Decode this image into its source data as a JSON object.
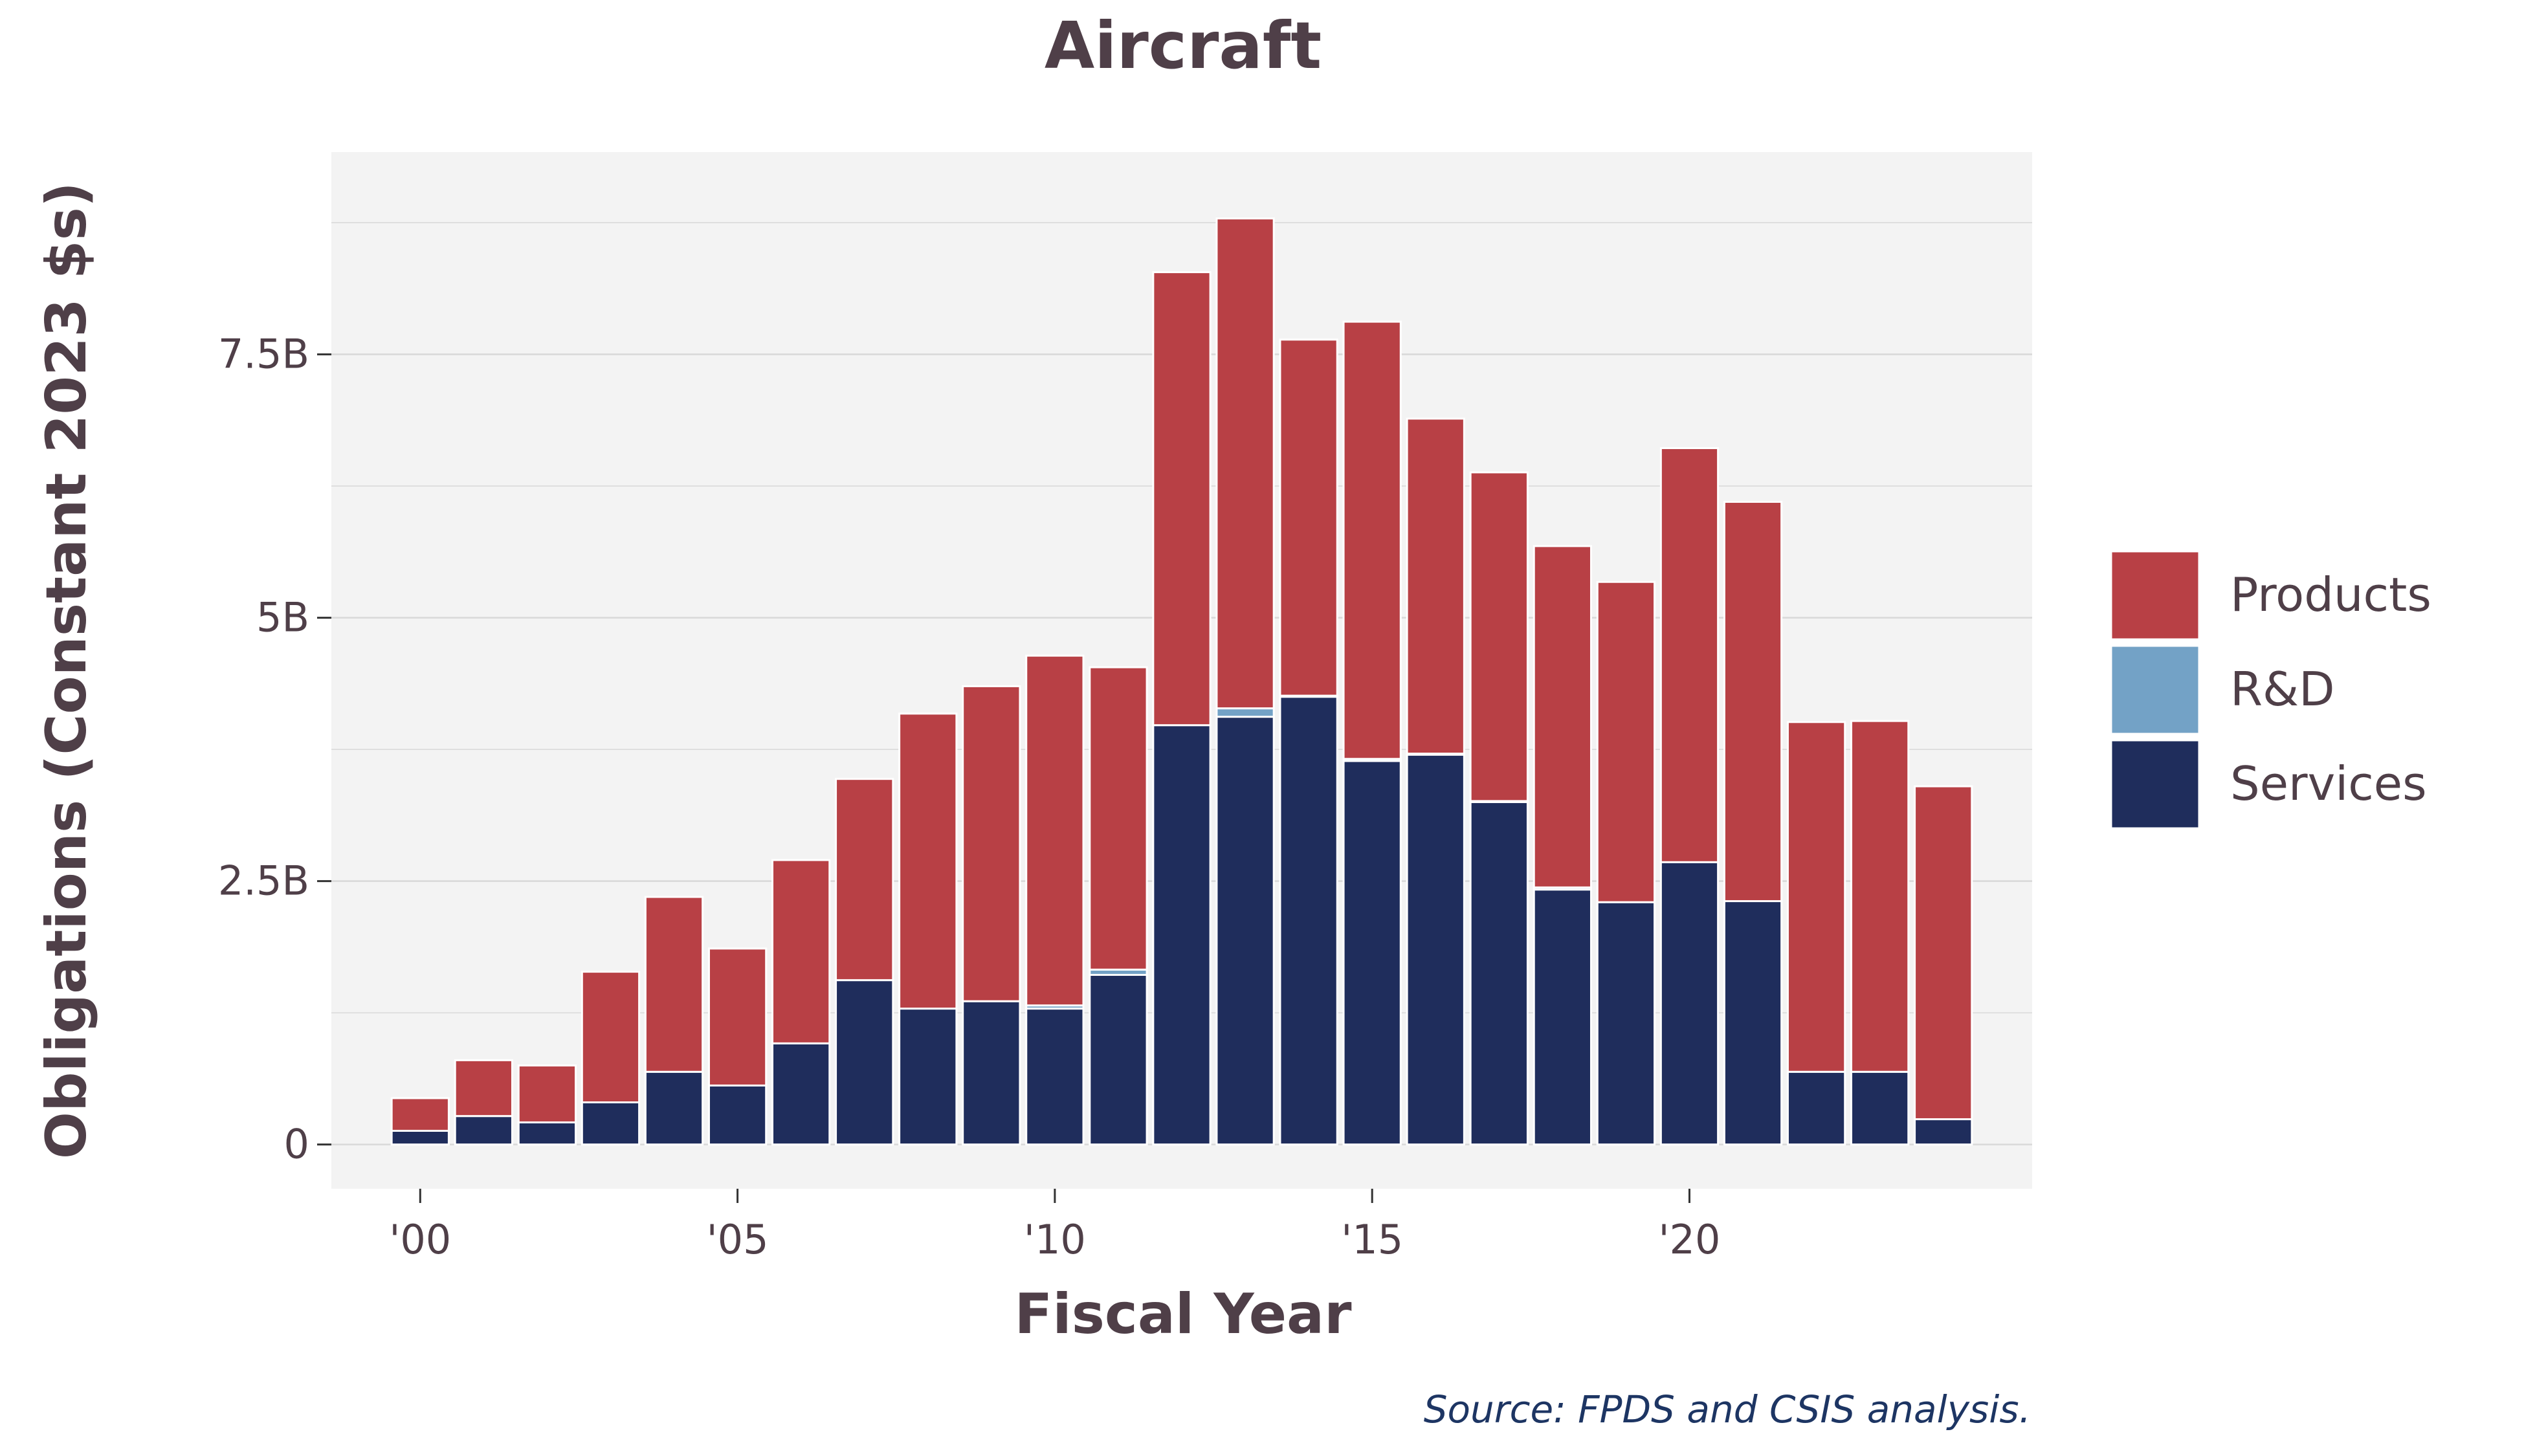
{
  "chart_data": {
    "type": "bar",
    "stacked": true,
    "title": "Aircraft",
    "xlabel": "Fiscal Year",
    "ylabel": "Obligations (Constant 2023 $s)",
    "source": "Source: FPDS and CSIS analysis.",
    "x": [
      2000,
      2001,
      2002,
      2003,
      2004,
      2005,
      2006,
      2007,
      2008,
      2009,
      2010,
      2011,
      2012,
      2013,
      2014,
      2015,
      2016,
      2017,
      2018,
      2019,
      2020,
      2021,
      2022,
      2023,
      2024
    ],
    "x_ticks": [
      {
        "value": 2000,
        "label": "'00"
      },
      {
        "value": 2005,
        "label": "'05"
      },
      {
        "value": 2010,
        "label": "'10"
      },
      {
        "value": 2015,
        "label": "'15"
      },
      {
        "value": 2020,
        "label": "'20"
      }
    ],
    "y_ticks": [
      {
        "value": 0,
        "label": "0"
      },
      {
        "value": 2.5,
        "label": "2.5B"
      },
      {
        "value": 5,
        "label": "5B"
      },
      {
        "value": 7.5,
        "label": "7.5B"
      }
    ],
    "ylim": [
      -0.42,
      9.42
    ],
    "xlim": [
      1998.6,
      2025.4
    ],
    "y_unit": "billions of constant 2023 dollars",
    "grid": true,
    "legend_position": "right",
    "series": [
      {
        "name": "Services",
        "color": "#1f2d5c",
        "values": [
          0.13,
          0.27,
          0.21,
          0.4,
          0.69,
          0.56,
          0.96,
          1.56,
          1.29,
          1.36,
          1.29,
          1.61,
          3.98,
          4.06,
          4.25,
          3.64,
          3.7,
          3.25,
          2.42,
          2.3,
          2.68,
          2.31,
          0.69,
          0.69,
          0.24
        ]
      },
      {
        "name": "R&D",
        "color": "#73a2c6",
        "values": [
          0.0,
          0.0,
          0.0,
          0.0,
          0.0,
          0.0,
          0.0,
          0.0,
          0.0,
          0.0,
          0.03,
          0.05,
          0.0,
          0.08,
          0.01,
          0.02,
          0.01,
          0.01,
          0.02,
          0.0,
          0.0,
          0.0,
          0.0,
          0.0,
          0.0
        ]
      },
      {
        "name": "Products",
        "color": "#b84045",
        "values": [
          0.31,
          0.53,
          0.54,
          1.24,
          1.66,
          1.3,
          1.74,
          1.91,
          2.8,
          2.99,
          3.32,
          2.87,
          4.3,
          4.65,
          3.38,
          4.15,
          3.18,
          3.12,
          3.24,
          3.04,
          3.93,
          3.79,
          3.32,
          3.33,
          3.16
        ]
      }
    ],
    "legend_order": [
      "Products",
      "R&D",
      "Services"
    ]
  }
}
